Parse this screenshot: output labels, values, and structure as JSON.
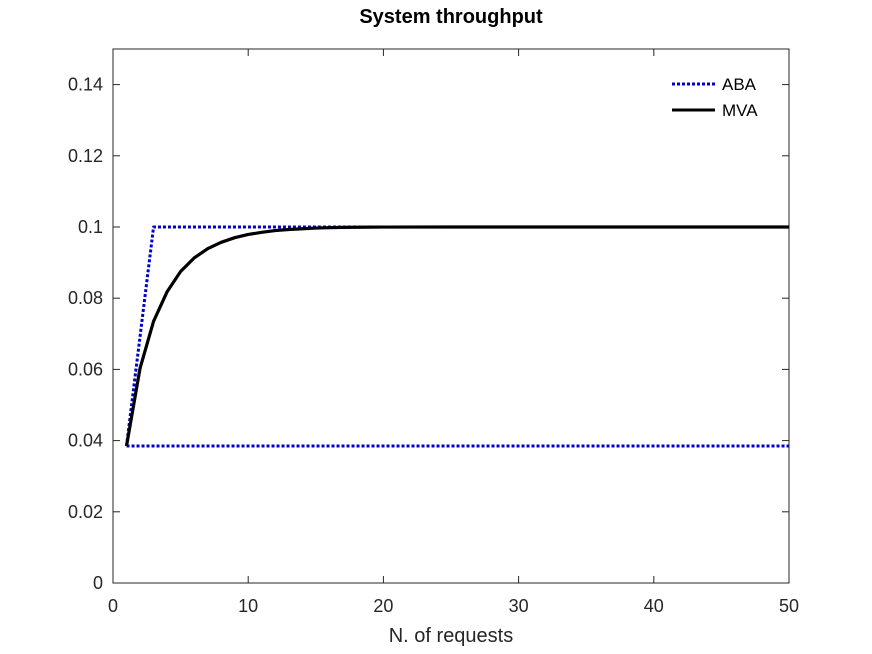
{
  "chart_data": {
    "type": "line",
    "title": "System throughput",
    "xlabel": "N. of requests",
    "ylabel": "",
    "xlim": [
      0,
      50
    ],
    "ylim": [
      0,
      0.15
    ],
    "xticks": [
      0,
      10,
      20,
      30,
      40,
      50
    ],
    "xtick_labels": [
      "0",
      "10",
      "20",
      "30",
      "40",
      "50"
    ],
    "yticks": [
      0,
      0.02,
      0.04,
      0.06,
      0.08,
      0.1,
      0.12,
      0.14
    ],
    "ytick_labels": [
      "0",
      "0.02",
      "0.04",
      "0.06",
      "0.08",
      "0.1",
      "0.12",
      "0.14"
    ],
    "grid": false,
    "legend_position": "top-right",
    "series": [
      {
        "name": "ABA",
        "style": "dotted",
        "color": "#0000cc",
        "segments": [
          {
            "x": [
              1,
              3,
              50
            ],
            "y": [
              0.0385,
              0.1,
              0.1
            ]
          },
          {
            "x": [
              1,
              50
            ],
            "y": [
              0.0385,
              0.0385
            ]
          }
        ]
      },
      {
        "name": "MVA",
        "style": "solid",
        "color": "#000000",
        "segments": [
          {
            "x": [
              1,
              2,
              3,
              4,
              5,
              6,
              7,
              8,
              9,
              10,
              11,
              12,
              13,
              14,
              15,
              16,
              17,
              18,
              19,
              20,
              25,
              30,
              35,
              40,
              45,
              50
            ],
            "y": [
              0.0385,
              0.0603,
              0.0735,
              0.0818,
              0.0875,
              0.0913,
              0.0939,
              0.0957,
              0.097,
              0.0979,
              0.0985,
              0.099,
              0.0993,
              0.0995,
              0.0997,
              0.0998,
              0.0999,
              0.09993,
              0.09996,
              0.09998,
              0.1,
              0.1,
              0.1,
              0.1,
              0.1,
              0.1
            ]
          }
        ]
      }
    ]
  }
}
